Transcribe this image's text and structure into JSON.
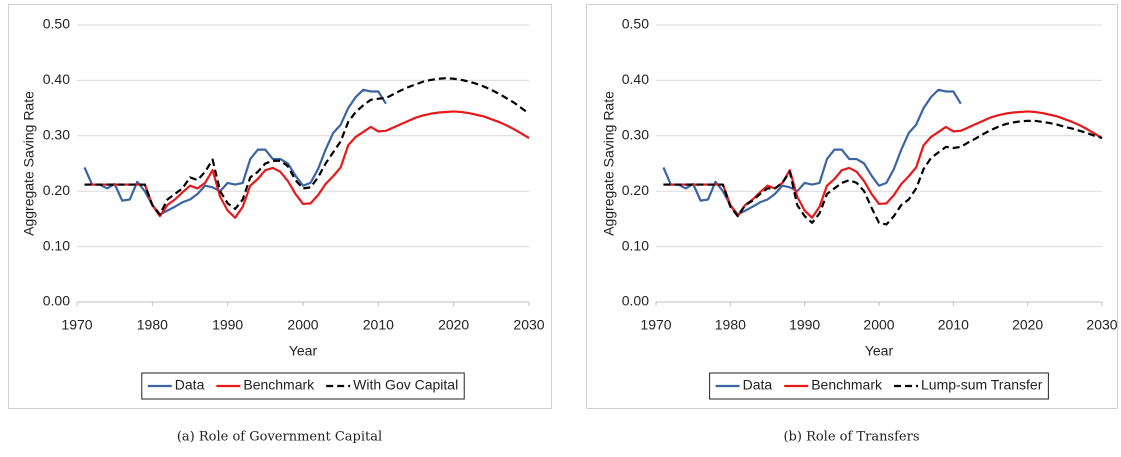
{
  "chart_data": [
    {
      "type": "line",
      "caption": "(a) Role of Government Capital",
      "y_label": "Aggregate Saving Rate",
      "x_label": "Year",
      "x": [
        1971,
        1972,
        1973,
        1974,
        1975,
        1976,
        1977,
        1978,
        1979,
        1980,
        1981,
        1982,
        1983,
        1984,
        1985,
        1986,
        1987,
        1988,
        1989,
        1990,
        1991,
        1992,
        1993,
        1994,
        1995,
        1996,
        1997,
        1998,
        1999,
        2000,
        2001,
        2002,
        2003,
        2004,
        2005,
        2006,
        2007,
        2008,
        2009,
        2010,
        2011,
        2012,
        2013,
        2014,
        2015,
        2016,
        2017,
        2018,
        2019,
        2020,
        2021,
        2022,
        2023,
        2024,
        2025,
        2026,
        2027,
        2028,
        2029,
        2030
      ],
      "series": [
        {
          "name": "Data",
          "color": "#3b64a2",
          "dash": false,
          "values": [
            0.243,
            0.212,
            0.212,
            0.205,
            0.213,
            0.183,
            0.185,
            0.217,
            0.2,
            0.175,
            0.158,
            0.165,
            0.172,
            0.18,
            0.185,
            0.195,
            0.21,
            0.207,
            0.2,
            0.215,
            0.212,
            0.215,
            0.258,
            0.275,
            0.275,
            0.258,
            0.258,
            0.25,
            0.228,
            0.21,
            0.215,
            0.24,
            0.275,
            0.305,
            0.32,
            0.35,
            0.37,
            0.383,
            0.38,
            0.38,
            0.358,
            null,
            null,
            null,
            null,
            null,
            null,
            null,
            null,
            null,
            null,
            null,
            null,
            null,
            null,
            null,
            null,
            null,
            null,
            null
          ]
        },
        {
          "name": "Benchmark",
          "color": "#e8191b",
          "dash": false,
          "values": [
            0.212,
            0.212,
            0.212,
            0.212,
            0.212,
            0.212,
            0.212,
            0.212,
            0.212,
            0.175,
            0.155,
            0.175,
            0.185,
            0.198,
            0.21,
            0.205,
            0.215,
            0.238,
            0.19,
            0.165,
            0.152,
            0.172,
            0.21,
            0.222,
            0.238,
            0.242,
            0.235,
            0.218,
            0.195,
            0.177,
            0.178,
            0.193,
            0.213,
            0.227,
            0.243,
            0.283,
            0.298,
            0.307,
            0.316,
            0.308,
            0.309,
            0.315,
            0.321,
            0.327,
            0.333,
            0.337,
            0.34,
            0.342,
            0.343,
            0.344,
            0.343,
            0.341,
            0.338,
            0.335,
            0.33,
            0.325,
            0.319,
            0.312,
            0.304,
            0.296
          ]
        },
        {
          "name": "With Gov Capital",
          "color": "#000000",
          "dash": true,
          "values": [
            0.212,
            0.212,
            0.212,
            0.212,
            0.212,
            0.212,
            0.212,
            0.212,
            0.212,
            0.175,
            0.158,
            0.185,
            0.195,
            0.205,
            0.225,
            0.22,
            0.235,
            0.257,
            0.2,
            0.178,
            0.168,
            0.185,
            0.225,
            0.235,
            0.25,
            0.255,
            0.255,
            0.245,
            0.22,
            0.205,
            0.207,
            0.225,
            0.25,
            0.27,
            0.29,
            0.325,
            0.343,
            0.355,
            0.365,
            0.367,
            0.368,
            0.375,
            0.382,
            0.388,
            0.393,
            0.398,
            0.401,
            0.403,
            0.404,
            0.403,
            0.401,
            0.398,
            0.394,
            0.389,
            0.383,
            0.376,
            0.368,
            0.36,
            0.35,
            0.34
          ]
        }
      ],
      "xlim": [
        1970,
        2030
      ],
      "xticks": [
        1970,
        1980,
        1990,
        2000,
        2010,
        2020,
        2030
      ],
      "ylim": [
        0,
        0.5
      ],
      "yticks": [
        {
          "value": 0,
          "label": "0.00"
        },
        {
          "value": 0.1,
          "label": "0.10"
        },
        {
          "value": 0.2,
          "label": "0.20"
        },
        {
          "value": 0.3,
          "label": "0.30"
        },
        {
          "value": 0.4,
          "label": "0.40"
        },
        {
          "value": 0.5,
          "label": "0.50"
        }
      ],
      "grid": true,
      "legend": "bottom"
    },
    {
      "type": "line",
      "caption": "(b) Role of Transfers",
      "y_label": "Aggregate Saving Rate",
      "x_label": "Year",
      "x": [
        1971,
        1972,
        1973,
        1974,
        1975,
        1976,
        1977,
        1978,
        1979,
        1980,
        1981,
        1982,
        1983,
        1984,
        1985,
        1986,
        1987,
        1988,
        1989,
        1990,
        1991,
        1992,
        1993,
        1994,
        1995,
        1996,
        1997,
        1998,
        1999,
        2000,
        2001,
        2002,
        2003,
        2004,
        2005,
        2006,
        2007,
        2008,
        2009,
        2010,
        2011,
        2012,
        2013,
        2014,
        2015,
        2016,
        2017,
        2018,
        2019,
        2020,
        2021,
        2022,
        2023,
        2024,
        2025,
        2026,
        2027,
        2028,
        2029,
        2030
      ],
      "series": [
        {
          "name": "Data",
          "color": "#3b64a2",
          "dash": false,
          "values": [
            0.243,
            0.212,
            0.212,
            0.205,
            0.213,
            0.183,
            0.185,
            0.217,
            0.2,
            0.175,
            0.158,
            0.165,
            0.172,
            0.18,
            0.185,
            0.195,
            0.21,
            0.207,
            0.2,
            0.215,
            0.212,
            0.215,
            0.258,
            0.275,
            0.275,
            0.258,
            0.258,
            0.25,
            0.228,
            0.21,
            0.215,
            0.24,
            0.275,
            0.305,
            0.32,
            0.35,
            0.37,
            0.383,
            0.38,
            0.38,
            0.358,
            null,
            null,
            null,
            null,
            null,
            null,
            null,
            null,
            null,
            null,
            null,
            null,
            null,
            null,
            null,
            null,
            null,
            null,
            null
          ]
        },
        {
          "name": "Benchmark",
          "color": "#e8191b",
          "dash": false,
          "values": [
            0.212,
            0.212,
            0.212,
            0.212,
            0.212,
            0.212,
            0.212,
            0.212,
            0.212,
            0.175,
            0.155,
            0.175,
            0.185,
            0.198,
            0.21,
            0.205,
            0.215,
            0.238,
            0.19,
            0.165,
            0.152,
            0.172,
            0.21,
            0.222,
            0.238,
            0.242,
            0.235,
            0.218,
            0.195,
            0.177,
            0.178,
            0.193,
            0.213,
            0.227,
            0.243,
            0.283,
            0.298,
            0.307,
            0.316,
            0.308,
            0.309,
            0.315,
            0.321,
            0.327,
            0.333,
            0.337,
            0.34,
            0.342,
            0.343,
            0.344,
            0.343,
            0.341,
            0.338,
            0.335,
            0.33,
            0.325,
            0.319,
            0.312,
            0.304,
            0.296
          ]
        },
        {
          "name": "Lump-sum Transfer",
          "color": "#000000",
          "dash": true,
          "values": [
            0.212,
            0.212,
            0.212,
            0.212,
            0.212,
            0.212,
            0.212,
            0.212,
            0.212,
            0.172,
            0.155,
            0.175,
            0.183,
            0.195,
            0.205,
            0.205,
            0.215,
            0.235,
            0.175,
            0.155,
            0.143,
            0.16,
            0.195,
            0.205,
            0.215,
            0.22,
            0.215,
            0.2,
            0.17,
            0.143,
            0.14,
            0.155,
            0.175,
            0.185,
            0.205,
            0.24,
            0.26,
            0.27,
            0.28,
            0.278,
            0.28,
            0.288,
            0.295,
            0.303,
            0.31,
            0.316,
            0.321,
            0.324,
            0.326,
            0.327,
            0.327,
            0.325,
            0.323,
            0.32,
            0.316,
            0.313,
            0.309,
            0.305,
            0.3,
            0.296
          ]
        }
      ],
      "xlim": [
        1970,
        2030
      ],
      "xticks": [
        1970,
        1980,
        1990,
        2000,
        2010,
        2020,
        2030
      ],
      "ylim": [
        0,
        0.5
      ],
      "yticks": [
        {
          "value": 0,
          "label": "0.00"
        },
        {
          "value": 0.1,
          "label": "0.10"
        },
        {
          "value": 0.2,
          "label": "0.20"
        },
        {
          "value": 0.3,
          "label": "0.30"
        },
        {
          "value": 0.4,
          "label": "0.40"
        },
        {
          "value": 0.5,
          "label": "0.50"
        }
      ],
      "grid": true,
      "legend": "bottom"
    }
  ]
}
